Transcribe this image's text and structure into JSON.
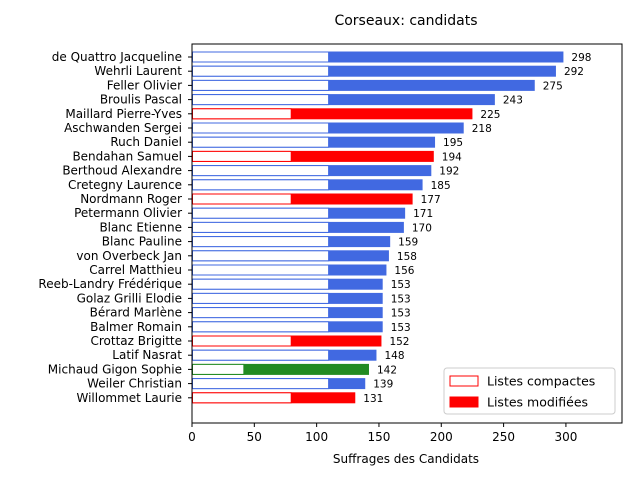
{
  "chart_data": {
    "type": "bar",
    "orientation": "horizontal",
    "title": "Corseaux: candidats",
    "xlabel": "Suffrages des Candidats",
    "ylabel": "",
    "xlim": [
      0,
      345
    ],
    "xticks": [
      0,
      50,
      100,
      150,
      200,
      250,
      300
    ],
    "grid": false,
    "legend_position": "lower-right",
    "legend": [
      {
        "label": "Listes compactes",
        "style": "outline",
        "color": "#ff0000"
      },
      {
        "label": "Listes modifiées",
        "style": "filled",
        "color": "#ff0000"
      }
    ],
    "colors": {
      "blue": "#4169e1",
      "red": "#ff0000",
      "green": "#228b22"
    },
    "candidates": [
      {
        "name": "de Quattro Jacqueline",
        "total": 298,
        "compact": 110,
        "color": "blue"
      },
      {
        "name": "Wehrli Laurent",
        "total": 292,
        "compact": 110,
        "color": "blue"
      },
      {
        "name": "Feller Olivier",
        "total": 275,
        "compact": 110,
        "color": "blue"
      },
      {
        "name": "Broulis Pascal",
        "total": 243,
        "compact": 110,
        "color": "blue"
      },
      {
        "name": "Maillard Pierre-Yves",
        "total": 225,
        "compact": 80,
        "color": "red"
      },
      {
        "name": "Aschwanden Sergei",
        "total": 218,
        "compact": 110,
        "color": "blue"
      },
      {
        "name": "Ruch Daniel",
        "total": 195,
        "compact": 110,
        "color": "blue"
      },
      {
        "name": "Bendahan Samuel",
        "total": 194,
        "compact": 80,
        "color": "red"
      },
      {
        "name": "Berthoud Alexandre",
        "total": 192,
        "compact": 110,
        "color": "blue"
      },
      {
        "name": "Cretegny Laurence",
        "total": 185,
        "compact": 110,
        "color": "blue"
      },
      {
        "name": "Nordmann Roger",
        "total": 177,
        "compact": 80,
        "color": "red"
      },
      {
        "name": "Petermann Olivier",
        "total": 171,
        "compact": 110,
        "color": "blue"
      },
      {
        "name": "Blanc Etienne",
        "total": 170,
        "compact": 110,
        "color": "blue"
      },
      {
        "name": "Blanc Pauline",
        "total": 159,
        "compact": 110,
        "color": "blue"
      },
      {
        "name": "von Overbeck Jan",
        "total": 158,
        "compact": 110,
        "color": "blue"
      },
      {
        "name": "Carrel Matthieu",
        "total": 156,
        "compact": 110,
        "color": "blue"
      },
      {
        "name": "Reeb-Landry Frédérique",
        "total": 153,
        "compact": 110,
        "color": "blue"
      },
      {
        "name": "Golaz Grilli Elodie",
        "total": 153,
        "compact": 110,
        "color": "blue"
      },
      {
        "name": "Bérard Marlène",
        "total": 153,
        "compact": 110,
        "color": "blue"
      },
      {
        "name": "Balmer Romain",
        "total": 153,
        "compact": 110,
        "color": "blue"
      },
      {
        "name": "Crottaz Brigitte",
        "total": 152,
        "compact": 80,
        "color": "red"
      },
      {
        "name": "Latif Nasrat",
        "total": 148,
        "compact": 110,
        "color": "blue"
      },
      {
        "name": "Michaud Gigon Sophie",
        "total": 142,
        "compact": 42,
        "color": "green"
      },
      {
        "name": "Weiler Christian",
        "total": 139,
        "compact": 110,
        "color": "blue"
      },
      {
        "name": "Willommet Laurie",
        "total": 131,
        "compact": 80,
        "color": "red"
      }
    ]
  }
}
